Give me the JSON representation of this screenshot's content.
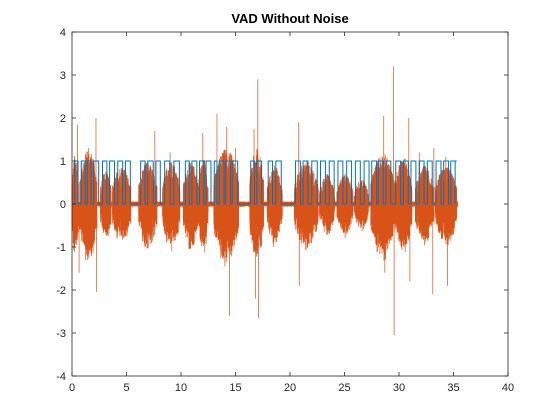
{
  "chart_data": {
    "type": "line",
    "title": "VAD Without Noise",
    "xlabel": "",
    "ylabel": "",
    "xlim": [
      0,
      40
    ],
    "ylim": [
      -4,
      4
    ],
    "xticks": [
      0,
      5,
      10,
      15,
      20,
      25,
      30,
      35,
      40
    ],
    "yticks": [
      -4,
      -3,
      -2,
      -1,
      0,
      1,
      2,
      3,
      4
    ],
    "grid": false,
    "legend": "none",
    "series": [
      {
        "role": "vad-decision",
        "color": "#0072BD",
        "segments": [
          [
            0.25,
            0.55
          ],
          [
            0.85,
            1.2
          ],
          [
            1.4,
            1.75
          ],
          [
            2.0,
            2.45
          ],
          [
            2.8,
            3.2
          ],
          [
            3.45,
            3.9
          ],
          [
            4.2,
            4.65
          ],
          [
            4.9,
            5.35
          ],
          [
            6.3,
            6.7
          ],
          [
            6.95,
            7.45
          ],
          [
            7.7,
            8.1
          ],
          [
            8.5,
            9.0
          ],
          [
            9.35,
            9.85
          ],
          [
            10.4,
            10.75
          ],
          [
            11.0,
            11.45
          ],
          [
            11.7,
            12.1
          ],
          [
            12.3,
            12.75
          ],
          [
            13.05,
            13.3
          ],
          [
            13.5,
            13.95
          ],
          [
            14.1,
            14.55
          ],
          [
            14.7,
            15.2
          ],
          [
            16.4,
            16.75
          ],
          [
            16.95,
            17.4
          ],
          [
            18.0,
            18.4
          ],
          [
            18.7,
            19.2
          ],
          [
            20.5,
            20.95
          ],
          [
            21.2,
            21.65
          ],
          [
            22.0,
            22.5
          ],
          [
            22.8,
            23.25
          ],
          [
            23.6,
            24.05
          ],
          [
            24.4,
            24.85
          ],
          [
            25.2,
            25.65
          ],
          [
            26.0,
            26.45
          ],
          [
            26.8,
            27.25
          ],
          [
            27.5,
            27.95
          ],
          [
            28.1,
            28.55
          ],
          [
            28.8,
            29.25
          ],
          [
            29.7,
            30.15
          ],
          [
            30.4,
            30.85
          ],
          [
            31.1,
            31.55
          ],
          [
            31.85,
            32.3
          ],
          [
            32.6,
            33.05
          ],
          [
            33.4,
            33.85
          ],
          [
            34.1,
            34.55
          ],
          [
            34.75,
            35.15
          ]
        ],
        "high": 1,
        "low": 0
      },
      {
        "role": "speech-waveform",
        "color": "#D95319",
        "bursts": [
          [
            0.0,
            0.6,
            1.2
          ],
          [
            0.7,
            2.3,
            1.3
          ],
          [
            2.6,
            3.6,
            0.8
          ],
          [
            3.7,
            5.4,
            0.9
          ],
          [
            6.1,
            7.8,
            1.0
          ],
          [
            8.3,
            9.9,
            1.0
          ],
          [
            10.2,
            11.6,
            1.0
          ],
          [
            11.6,
            12.5,
            1.1
          ],
          [
            13.0,
            15.3,
            1.3
          ],
          [
            16.3,
            17.6,
            1.3
          ],
          [
            17.9,
            19.3,
            0.9
          ],
          [
            20.4,
            22.6,
            1.0
          ],
          [
            22.7,
            24.1,
            0.7
          ],
          [
            24.3,
            25.8,
            0.7
          ],
          [
            25.9,
            27.2,
            0.6
          ],
          [
            27.4,
            29.6,
            1.2
          ],
          [
            29.6,
            31.2,
            1.1
          ],
          [
            31.5,
            33.2,
            0.9
          ],
          [
            33.3,
            35.3,
            0.9
          ]
        ],
        "peaks": [
          [
            0.5,
            1.85
          ],
          [
            0.65,
            -1.6
          ],
          [
            1.5,
            1.3
          ],
          [
            2.2,
            2.0
          ],
          [
            2.25,
            -2.05
          ],
          [
            7.6,
            1.7
          ],
          [
            9.0,
            1.2
          ],
          [
            12.0,
            1.65
          ],
          [
            13.3,
            2.1
          ],
          [
            14.2,
            1.8
          ],
          [
            14.45,
            -2.6
          ],
          [
            15.0,
            1.3
          ],
          [
            16.7,
            1.75
          ],
          [
            16.85,
            -2.2
          ],
          [
            17.05,
            2.9
          ],
          [
            17.1,
            -2.65
          ],
          [
            18.5,
            -1.0
          ],
          [
            20.8,
            1.9
          ],
          [
            20.85,
            -1.9
          ],
          [
            28.6,
            2.05
          ],
          [
            28.7,
            -1.6
          ],
          [
            29.5,
            3.2
          ],
          [
            29.55,
            -3.05
          ],
          [
            30.9,
            2.0
          ],
          [
            31.0,
            -1.8
          ],
          [
            31.9,
            1.2
          ],
          [
            33.1,
            -2.1
          ],
          [
            33.2,
            1.3
          ],
          [
            34.3,
            1.1
          ],
          [
            34.45,
            -1.9
          ]
        ]
      }
    ]
  }
}
